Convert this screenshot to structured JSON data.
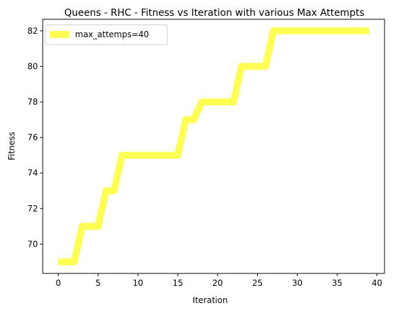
{
  "chart_data": {
    "type": "line",
    "title": "Queens - RHC - Fitness vs Iteration with various Max Attempts",
    "xlabel": "Iteration",
    "ylabel": "Fitness",
    "xlim": [
      -1.95,
      40.95
    ],
    "ylim": [
      68.35,
      82.65
    ],
    "xticks": [
      0,
      5,
      10,
      15,
      20,
      25,
      30,
      35,
      40
    ],
    "yticks": [
      70,
      72,
      74,
      76,
      78,
      80,
      82
    ],
    "grid": false,
    "legend_position": "top-left",
    "series": [
      {
        "name": "max_attemps=40",
        "color": "#ffff33",
        "x": [
          0,
          1,
          2,
          3,
          4,
          5,
          6,
          7,
          8,
          9,
          10,
          11,
          12,
          13,
          14,
          15,
          16,
          17,
          18,
          19,
          20,
          21,
          22,
          23,
          24,
          25,
          26,
          27,
          28,
          29,
          30,
          31,
          32,
          33,
          34,
          35,
          36,
          37,
          38,
          39
        ],
        "y": [
          69,
          69,
          69,
          71,
          71,
          71,
          73,
          73,
          75,
          75,
          75,
          75,
          75,
          75,
          75,
          75,
          77,
          77,
          78,
          78,
          78,
          78,
          78,
          80,
          80,
          80,
          80,
          82,
          82,
          82,
          82,
          82,
          82,
          82,
          82,
          82,
          82,
          82,
          82,
          82
        ]
      }
    ]
  }
}
